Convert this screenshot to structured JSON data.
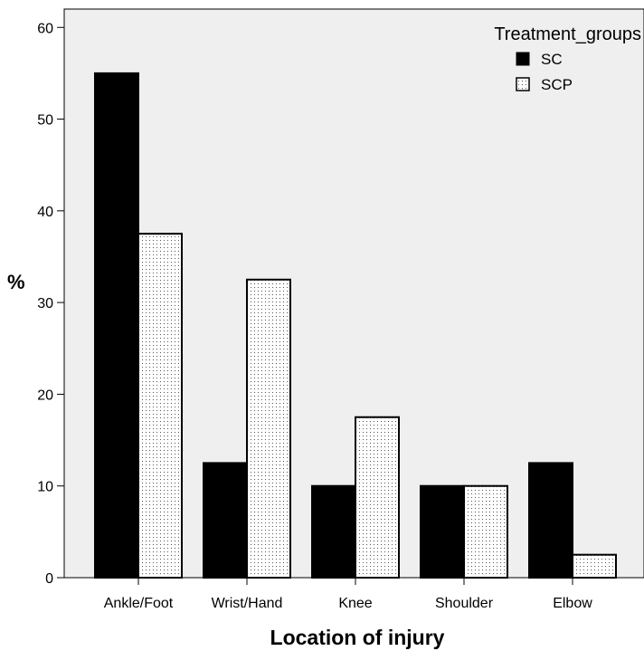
{
  "chart_data": {
    "type": "bar",
    "xlabel": "Location of injury",
    "ylabel": "%",
    "ylim": [
      0,
      62
    ],
    "yticks": [
      0,
      10,
      20,
      30,
      40,
      50,
      60
    ],
    "categories": [
      "Ankle/Foot",
      "Wrist/Hand",
      "Knee",
      "Shoulder",
      "Elbow"
    ],
    "series": [
      {
        "name": "SC",
        "values": [
          55,
          12.5,
          10,
          10,
          12.5
        ]
      },
      {
        "name": "SCP",
        "values": [
          37.5,
          32.5,
          17.5,
          10,
          2.5
        ]
      }
    ],
    "legend": {
      "title": "Treatment_groups",
      "position": "top-right"
    },
    "colors": {
      "plot_background": "#efefef",
      "SC": "#000000",
      "SCP": "#ffffff",
      "SCP_dots": "#555555"
    },
    "grid": false
  }
}
